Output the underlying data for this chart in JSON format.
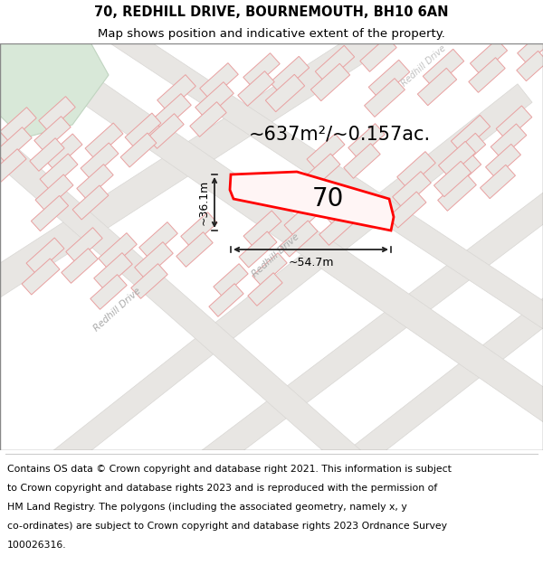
{
  "title_line1": "70, REDHILL DRIVE, BOURNEMOUTH, BH10 6AN",
  "title_line2": "Map shows position and indicative extent of the property.",
  "footer_lines": [
    "Contains OS data © Crown copyright and database right 2021. This information is subject",
    "to Crown copyright and database rights 2023 and is reproduced with the permission of",
    "HM Land Registry. The polygons (including the associated geometry, namely x, y",
    "co-ordinates) are subject to Crown copyright and database rights 2023 Ordnance Survey",
    "100026316."
  ],
  "map_bg": "#f0eeeb",
  "road_fill": "#e8e6e3",
  "road_edge": "#d8d6d3",
  "bld_fill": "#eae8e5",
  "bld_edge": "#e8a0a0",
  "green_fill": "#d8e8d8",
  "green_edge": "#c0d4c0",
  "plot_fill": "#fff5f5",
  "plot_edge": "#ff0000",
  "meas_color": "#222222",
  "road_label_color": "#aaaaaa",
  "label_number": "70",
  "label_area": "~637m²/~0.157ac.",
  "label_width": "~54.7m",
  "label_height": "~36.1m",
  "title_fontsize": 10.5,
  "subtitle_fontsize": 9.5,
  "footer_fontsize": 7.8,
  "number_fontsize": 20,
  "area_fontsize": 15,
  "meas_fontsize": 9
}
